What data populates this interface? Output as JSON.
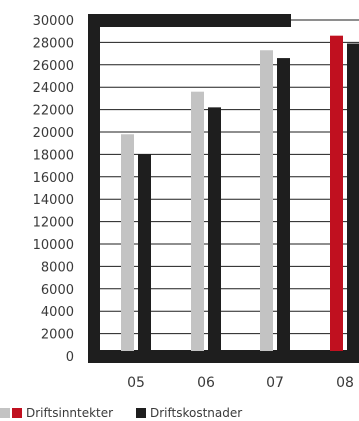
{
  "chart_data": {
    "type": "bar",
    "categories": [
      "05",
      "06",
      "07",
      "08"
    ],
    "series": [
      {
        "name": "Driftsinntekter",
        "values": [
          19800,
          23600,
          27300,
          28600
        ]
      },
      {
        "name": "Driftskostnader",
        "values": [
          18000,
          22200,
          26600,
          27900
        ]
      }
    ],
    "ylim": [
      0,
      30000
    ],
    "yticks": [
      0,
      2000,
      4000,
      6000,
      8000,
      10000,
      12000,
      14000,
      16000,
      18000,
      20000,
      22000,
      24000,
      26000,
      28000,
      30000
    ],
    "grid": true,
    "legend_position": "bottom-left",
    "colors": {
      "income": "#c3c3c3",
      "income_highlight": "#c0101f",
      "cost": "#1e1e1e",
      "frame": "#1e1e1e",
      "grid": "#1e1e1e",
      "text": "#3a3a3a"
    },
    "highlight_category_index": 3
  }
}
